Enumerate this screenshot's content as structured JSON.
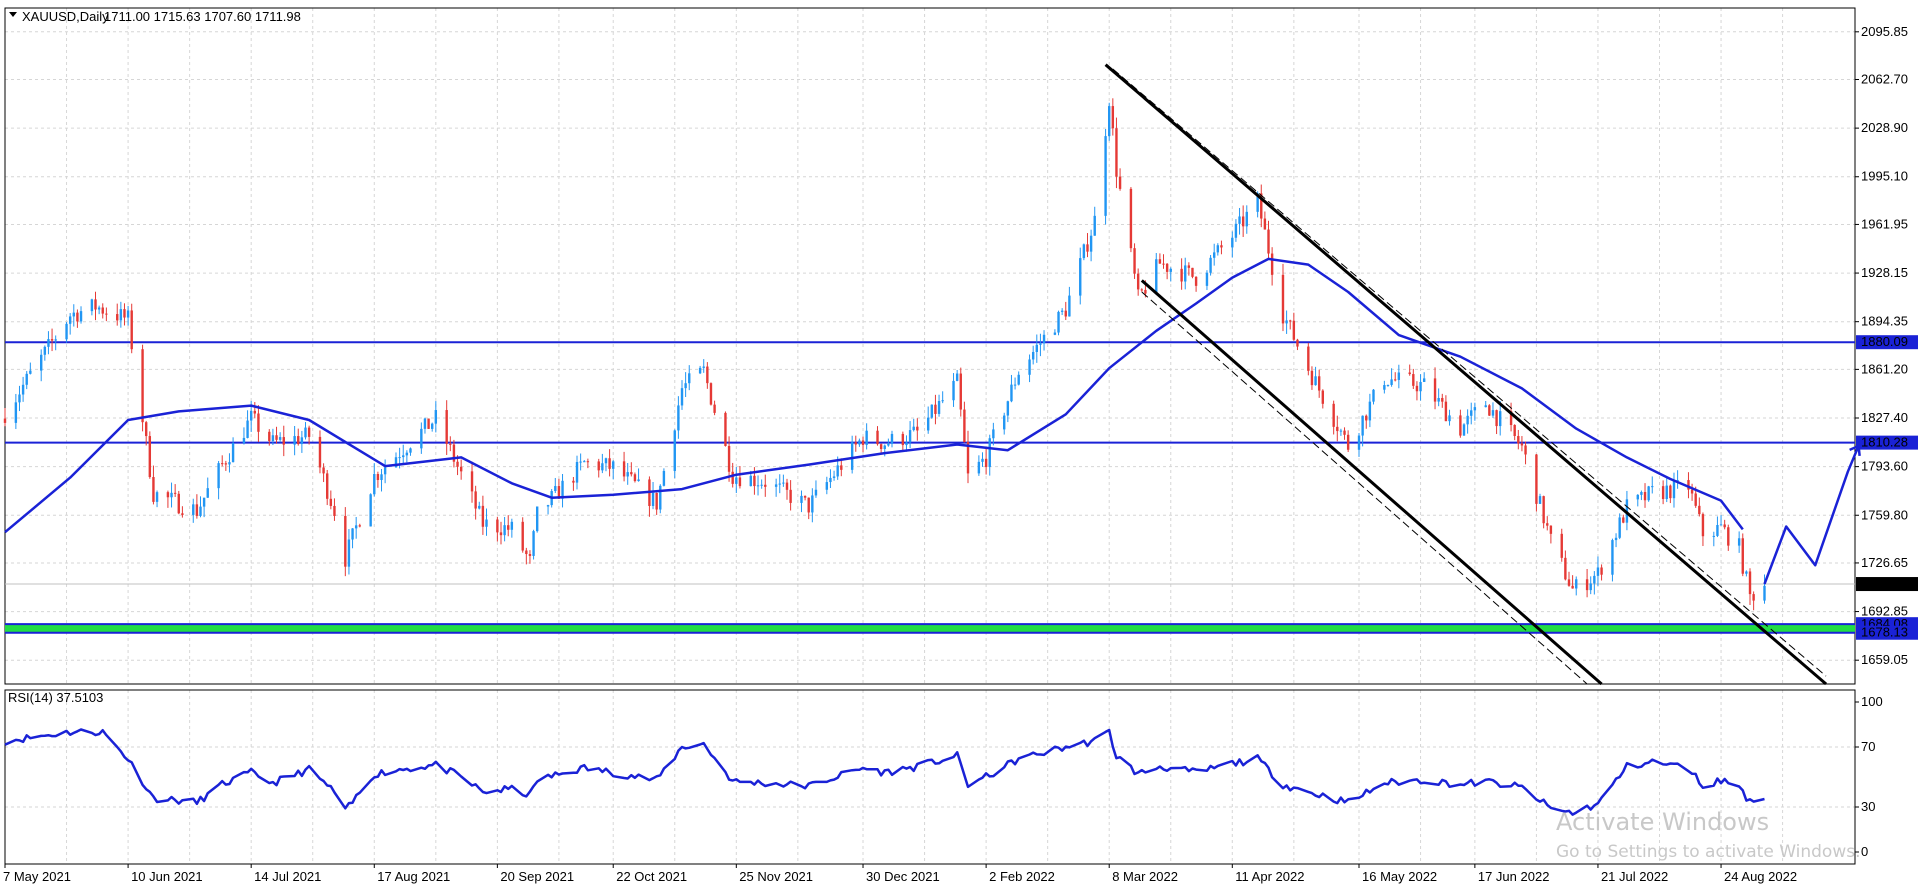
{
  "header": {
    "symbol_label": "XAUUSD,Daily",
    "ohlc": "1711.00 1715.63 1707.60 1711.98"
  },
  "rsi_header": "RSI(14) 37.5103",
  "watermark": {
    "title": "Activate Windows",
    "subtitle": "Go to Settings to activate Windows."
  },
  "colors": {
    "bull": "#2196f3",
    "bear": "#e53935",
    "ma": "#1a22d6",
    "level": "#1a22d6",
    "zone": "#22dd44",
    "channel": "#000000",
    "rsi": "#1a22d6",
    "grid": "#d6d6d6"
  },
  "chart_data": [
    {
      "type": "candlestick",
      "x_type": "date",
      "x_start": "2021-05-07",
      "x_end": "2022-09-30",
      "xticks": [
        "7 May 2021",
        "10 Jun 2021",
        "14 Jul 2021",
        "17 Aug 2021",
        "20 Sep 2021",
        "22 Oct 2021",
        "25 Nov 2021",
        "30 Dec 2021",
        "2 Feb 2022",
        "8 Mar 2022",
        "11 Apr 2022",
        "16 May 2022",
        "17 Jun 2022",
        "21 Jul 2022",
        "24 Aug 2022"
      ],
      "ylim": [
        1642.5,
        2112.4
      ],
      "yticks": [
        2095.85,
        2062.7,
        2028.9,
        1995.1,
        1961.95,
        1928.15,
        1894.35,
        1861.2,
        1827.4,
        1793.6,
        1759.8,
        1726.65,
        1692.85,
        1659.05
      ],
      "last_price": 1711.98,
      "grid": true,
      "close_path": [
        [
          "2021-05-07",
          1831
        ],
        [
          "2021-05-25",
          1899
        ],
        [
          "2021-06-01",
          1905
        ],
        [
          "2021-06-10",
          1896
        ],
        [
          "2021-06-17",
          1775
        ],
        [
          "2021-06-29",
          1763
        ],
        [
          "2021-07-06",
          1795
        ],
        [
          "2021-07-14",
          1827
        ],
        [
          "2021-07-20",
          1810
        ],
        [
          "2021-07-30",
          1815
        ],
        [
          "2021-08-06",
          1763
        ],
        [
          "2021-08-09",
          1730
        ],
        [
          "2021-08-17",
          1787
        ],
        [
          "2021-08-24",
          1804
        ],
        [
          "2021-09-03",
          1827
        ],
        [
          "2021-09-10",
          1788
        ],
        [
          "2021-09-16",
          1754
        ],
        [
          "2021-09-24",
          1750
        ],
        [
          "2021-09-29",
          1727
        ],
        [
          "2021-10-01",
          1760
        ],
        [
          "2021-10-14",
          1796
        ],
        [
          "2021-10-22",
          1793
        ],
        [
          "2021-11-03",
          1768
        ],
        [
          "2021-11-10",
          1848
        ],
        [
          "2021-11-16",
          1860
        ],
        [
          "2021-11-24",
          1788
        ],
        [
          "2021-12-03",
          1783
        ],
        [
          "2021-12-15",
          1766
        ],
        [
          "2021-12-30",
          1814
        ],
        [
          "2022-01-05",
          1810
        ],
        [
          "2022-01-14",
          1817
        ],
        [
          "2022-01-25",
          1852
        ],
        [
          "2022-01-28",
          1786
        ],
        [
          "2022-02-02",
          1800
        ],
        [
          "2022-02-11",
          1860
        ],
        [
          "2022-02-24",
          1903
        ],
        [
          "2022-03-04",
          1965
        ],
        [
          "2022-03-08",
          2050
        ],
        [
          "2022-03-10",
          2000
        ],
        [
          "2022-03-16",
          1910
        ],
        [
          "2022-03-22",
          1935
        ],
        [
          "2022-04-01",
          1925
        ],
        [
          "2022-04-11",
          1954
        ],
        [
          "2022-04-18",
          1978
        ],
        [
          "2022-04-25",
          1900
        ],
        [
          "2022-05-02",
          1862
        ],
        [
          "2022-05-13",
          1808
        ],
        [
          "2022-05-23",
          1855
        ],
        [
          "2022-06-03",
          1850
        ],
        [
          "2022-06-13",
          1820
        ],
        [
          "2022-06-20",
          1838
        ],
        [
          "2022-06-30",
          1807
        ],
        [
          "2022-07-08",
          1742
        ],
        [
          "2022-07-14",
          1708
        ],
        [
          "2022-07-21",
          1719
        ],
        [
          "2022-07-29",
          1765
        ],
        [
          "2022-08-05",
          1775
        ],
        [
          "2022-08-15",
          1780
        ],
        [
          "2022-08-19",
          1747
        ],
        [
          "2022-08-24",
          1751
        ],
        [
          "2022-08-29",
          1737
        ],
        [
          "2022-09-01",
          1703
        ],
        [
          "2022-09-05",
          1712
        ]
      ],
      "moving_average": [
        [
          "2021-05-07",
          1748
        ],
        [
          "2021-05-25",
          1786
        ],
        [
          "2021-06-10",
          1826
        ],
        [
          "2021-06-24",
          1832
        ],
        [
          "2021-07-14",
          1836
        ],
        [
          "2021-07-30",
          1826
        ],
        [
          "2021-08-20",
          1794
        ],
        [
          "2021-09-10",
          1800
        ],
        [
          "2021-09-24",
          1782
        ],
        [
          "2021-10-05",
          1772
        ],
        [
          "2021-10-22",
          1774
        ],
        [
          "2021-11-10",
          1778
        ],
        [
          "2021-11-25",
          1788
        ],
        [
          "2021-12-15",
          1795
        ],
        [
          "2022-01-05",
          1803
        ],
        [
          "2022-01-25",
          1809
        ],
        [
          "2022-02-08",
          1805
        ],
        [
          "2022-02-24",
          1830
        ],
        [
          "2022-03-08",
          1862
        ],
        [
          "2022-03-21",
          1888
        ],
        [
          "2022-04-01",
          1907
        ],
        [
          "2022-04-11",
          1925
        ],
        [
          "2022-04-21",
          1938
        ],
        [
          "2022-05-02",
          1934
        ],
        [
          "2022-05-13",
          1915
        ],
        [
          "2022-05-27",
          1885
        ],
        [
          "2022-06-13",
          1870
        ],
        [
          "2022-06-30",
          1848
        ],
        [
          "2022-07-15",
          1820
        ],
        [
          "2022-07-29",
          1800
        ],
        [
          "2022-08-10",
          1785
        ],
        [
          "2022-08-24",
          1770
        ],
        [
          "2022-08-30",
          1750
        ]
      ],
      "levels": [
        {
          "price": 1880.09,
          "label": "1880.09"
        },
        {
          "price": 1810.28,
          "label": "1810.28"
        },
        {
          "price": 1684.08,
          "label": "1684.08"
        },
        {
          "price": 1678.13,
          "label": "1678.13"
        }
      ],
      "support_zone": [
        1678.13,
        1684.08
      ],
      "channel_lines": [
        {
          "style": "solid",
          "from": [
            "2022-03-07",
            2073
          ],
          "to": [
            "2022-09-22",
            1642.5
          ]
        },
        {
          "style": "dashed",
          "from": [
            "2022-03-09",
            2070
          ],
          "to": [
            "2022-09-22",
            1648
          ]
        },
        {
          "style": "solid",
          "from": [
            "2022-03-17",
            1923
          ],
          "to": [
            "2022-07-22",
            1642.5
          ]
        },
        {
          "style": "dashed",
          "from": [
            "2022-03-17",
            1915
          ],
          "to": [
            "2022-07-18",
            1642.5
          ]
        }
      ],
      "projection": [
        [
          "2022-09-05",
          1712
        ],
        [
          "2022-09-11",
          1752
        ],
        [
          "2022-09-19",
          1725
        ],
        [
          "2022-09-28",
          1790
        ],
        [
          "2022-10-01",
          1808
        ]
      ]
    },
    {
      "type": "line",
      "name": "RSI(14)",
      "ylim": [
        0,
        100
      ],
      "yticks": [
        100,
        70,
        30,
        0
      ],
      "values": [
        [
          "2021-05-07",
          74
        ],
        [
          "2021-05-25",
          80
        ],
        [
          "2021-06-03",
          80
        ],
        [
          "2021-06-10",
          62
        ],
        [
          "2021-06-17",
          36
        ],
        [
          "2021-06-29",
          33
        ],
        [
          "2021-07-06",
          45
        ],
        [
          "2021-07-14",
          53
        ],
        [
          "2021-07-20",
          46
        ],
        [
          "2021-07-30",
          55
        ],
        [
          "2021-08-06",
          40
        ],
        [
          "2021-08-09",
          27
        ],
        [
          "2021-08-17",
          52
        ],
        [
          "2021-08-24",
          55
        ],
        [
          "2021-09-03",
          58
        ],
        [
          "2021-09-10",
          50
        ],
        [
          "2021-09-16",
          40
        ],
        [
          "2021-09-24",
          42
        ],
        [
          "2021-09-29",
          38
        ],
        [
          "2021-10-01",
          48
        ],
        [
          "2021-10-14",
          56
        ],
        [
          "2021-10-22",
          53
        ],
        [
          "2021-11-03",
          48
        ],
        [
          "2021-11-10",
          70
        ],
        [
          "2021-11-16",
          72
        ],
        [
          "2021-11-24",
          47
        ],
        [
          "2021-12-03",
          46
        ],
        [
          "2021-12-15",
          44
        ],
        [
          "2021-12-30",
          56
        ],
        [
          "2022-01-05",
          53
        ],
        [
          "2022-01-14",
          57
        ],
        [
          "2022-01-25",
          64
        ],
        [
          "2022-01-28",
          45
        ],
        [
          "2022-02-02",
          50
        ],
        [
          "2022-02-11",
          62
        ],
        [
          "2022-02-24",
          70
        ],
        [
          "2022-03-04",
          74
        ],
        [
          "2022-03-08",
          80
        ],
        [
          "2022-03-10",
          64
        ],
        [
          "2022-03-16",
          52
        ],
        [
          "2022-03-22",
          57
        ],
        [
          "2022-04-01",
          53
        ],
        [
          "2022-04-11",
          59
        ],
        [
          "2022-04-18",
          62
        ],
        [
          "2022-04-25",
          45
        ],
        [
          "2022-05-02",
          40
        ],
        [
          "2022-05-13",
          33
        ],
        [
          "2022-05-23",
          46
        ],
        [
          "2022-06-03",
          48
        ],
        [
          "2022-06-13",
          45
        ],
        [
          "2022-06-20",
          47
        ],
        [
          "2022-06-30",
          43
        ],
        [
          "2022-07-08",
          29
        ],
        [
          "2022-07-14",
          26
        ],
        [
          "2022-07-21",
          32
        ],
        [
          "2022-07-29",
          57
        ],
        [
          "2022-08-05",
          60
        ],
        [
          "2022-08-15",
          56
        ],
        [
          "2022-08-19",
          44
        ],
        [
          "2022-08-24",
          48
        ],
        [
          "2022-08-29",
          44
        ],
        [
          "2022-09-01",
          33
        ],
        [
          "2022-09-05",
          37.51
        ]
      ]
    }
  ]
}
